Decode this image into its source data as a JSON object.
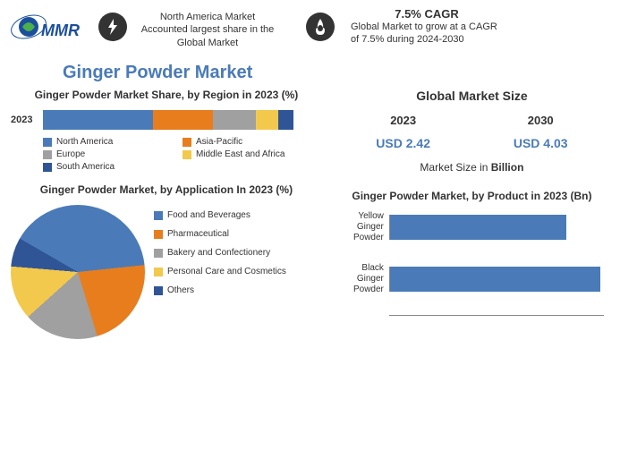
{
  "header": {
    "fact1": "North America Market Accounted largest share in the Global Market",
    "cagr_title": "7.5% CAGR",
    "cagr_text": "Global Market to grow at a CAGR of 7.5% during 2024-2030"
  },
  "main_title": "Ginger Powder Market",
  "region_chart": {
    "title": "Ginger Powder Market Share, by Region in 2023 (%)",
    "year_label": "2023",
    "segments": [
      {
        "name": "North America",
        "pct": 44,
        "color": "#4a7bb8"
      },
      {
        "name": "Asia-Pacific",
        "pct": 24,
        "color": "#e87d1e"
      },
      {
        "name": "Europe",
        "pct": 17,
        "color": "#a0a0a0"
      },
      {
        "name": "Middle East and Africa",
        "pct": 9,
        "color": "#f2c94c"
      },
      {
        "name": "South America",
        "pct": 6,
        "color": "#2f5597"
      }
    ]
  },
  "market_size": {
    "title": "Global Market Size",
    "year1": "2023",
    "year2": "2030",
    "val1": "USD 2.42",
    "val2": "USD 4.03",
    "subtitle_pre": "Market Size in ",
    "subtitle_bold": "Billion"
  },
  "application_chart": {
    "title": "Ginger Powder Market, by Application In 2023 (%)",
    "slices": [
      {
        "name": "Food and Beverages",
        "pct": 40,
        "color": "#4a7bb8"
      },
      {
        "name": "Pharmaceutical",
        "pct": 22,
        "color": "#e87d1e"
      },
      {
        "name": "Bakery and Confectionery",
        "pct": 18,
        "color": "#a0a0a0"
      },
      {
        "name": "Personal Care and Cosmetics",
        "pct": 13,
        "color": "#f2c94c"
      },
      {
        "name": "Others",
        "pct": 7,
        "color": "#2f5597"
      }
    ]
  },
  "product_chart": {
    "title": "Ginger Powder Market, by Product in 2023 (Bn)",
    "bars": [
      {
        "label": "Yellow Ginger Powder",
        "value": 0.82,
        "color": "#4a7bb8"
      },
      {
        "label": "Black Ginger Powder",
        "value": 0.98,
        "color": "#4a7bb8"
      }
    ],
    "max": 1.0
  },
  "colors": {
    "accent": "#4a7bb8",
    "bg": "#ffffff"
  }
}
